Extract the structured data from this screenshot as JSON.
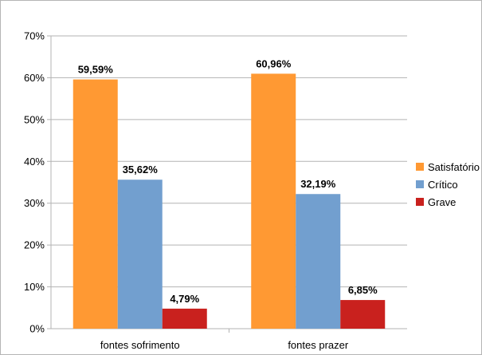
{
  "chart_data": {
    "type": "bar",
    "title": "",
    "xlabel": "",
    "ylabel": "",
    "categories": [
      "fontes sofrimento",
      "fontes prazer"
    ],
    "series": [
      {
        "name": "Satisfatório",
        "color": "#ff9933",
        "values": [
          59.59,
          60.96
        ],
        "labels": [
          "59,59%",
          "60,96%"
        ]
      },
      {
        "name": "Crítico",
        "color": "#729fcf",
        "values": [
          35.62,
          32.19
        ],
        "labels": [
          "35,62%",
          "32,19%"
        ]
      },
      {
        "name": "Grave",
        "color": "#c9211e",
        "values": [
          4.79,
          6.85
        ],
        "labels": [
          "4,79%",
          "6,85%"
        ]
      }
    ],
    "ylim": [
      0,
      70
    ],
    "yticks": [
      0,
      10,
      20,
      30,
      40,
      50,
      60,
      70
    ],
    "ytick_labels": [
      "0%",
      "10%",
      "20%",
      "30%",
      "40%",
      "50%",
      "60%",
      "70%"
    ],
    "grid": true,
    "legend_position": "right"
  }
}
